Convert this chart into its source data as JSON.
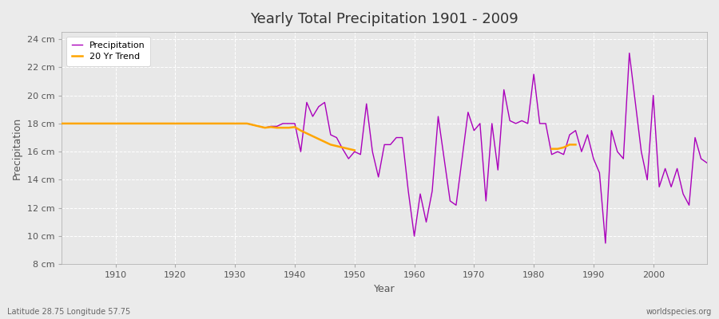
{
  "title": "Yearly Total Precipitation 1901 - 2009",
  "xlabel": "Year",
  "ylabel": "Precipitation",
  "subtitle_lat": "Latitude 28.75 Longitude 57.75",
  "watermark": "worldspecies.org",
  "ylim": [
    8,
    24.5
  ],
  "yticks": [
    8,
    10,
    12,
    14,
    16,
    18,
    20,
    22,
    24
  ],
  "ytick_labels": [
    "8 cm",
    "10 cm",
    "12 cm",
    "14 cm",
    "16 cm",
    "18 cm",
    "20 cm",
    "22 cm",
    "24 cm"
  ],
  "years": [
    1901,
    1902,
    1903,
    1904,
    1905,
    1906,
    1907,
    1908,
    1909,
    1910,
    1911,
    1912,
    1913,
    1914,
    1915,
    1916,
    1917,
    1918,
    1919,
    1920,
    1921,
    1922,
    1923,
    1924,
    1925,
    1926,
    1927,
    1928,
    1929,
    1930,
    1931,
    1932,
    1933,
    1934,
    1935,
    1936,
    1937,
    1938,
    1939,
    1940,
    1941,
    1942,
    1943,
    1944,
    1945,
    1946,
    1947,
    1948,
    1949,
    1950,
    1951,
    1952,
    1953,
    1954,
    1955,
    1956,
    1957,
    1958,
    1959,
    1960,
    1961,
    1962,
    1963,
    1964,
    1965,
    1966,
    1967,
    1968,
    1969,
    1970,
    1971,
    1972,
    1973,
    1974,
    1975,
    1976,
    1977,
    1978,
    1979,
    1980,
    1981,
    1982,
    1983,
    1984,
    1985,
    1986,
    1987,
    1988,
    1989,
    1990,
    1991,
    1992,
    1993,
    1994,
    1995,
    1996,
    1997,
    1998,
    1999,
    2000,
    2001,
    2002,
    2003,
    2004,
    2005,
    2006,
    2007,
    2008,
    2009
  ],
  "precip": [
    18.0,
    18.0,
    18.0,
    18.0,
    18.0,
    18.0,
    18.0,
    18.0,
    18.0,
    18.0,
    18.0,
    18.0,
    18.0,
    18.0,
    18.0,
    18.0,
    18.0,
    18.0,
    18.0,
    18.0,
    18.0,
    18.0,
    18.0,
    18.0,
    18.0,
    18.0,
    18.0,
    18.0,
    18.0,
    18.0,
    18.0,
    18.0,
    17.9,
    17.8,
    17.7,
    17.8,
    17.8,
    18.0,
    18.0,
    18.0,
    16.0,
    19.5,
    18.5,
    19.2,
    19.5,
    17.2,
    17.0,
    16.2,
    15.5,
    16.0,
    15.8,
    19.4,
    16.0,
    14.2,
    16.5,
    16.5,
    17.0,
    17.0,
    13.2,
    10.0,
    13.0,
    11.0,
    13.2,
    18.5,
    15.5,
    12.5,
    12.2,
    15.5,
    18.8,
    17.5,
    18.0,
    12.5,
    18.0,
    14.7,
    20.4,
    18.2,
    18.0,
    18.2,
    18.0,
    21.5,
    18.0,
    18.0,
    15.8,
    16.0,
    15.8,
    17.2,
    17.5,
    16.0,
    17.2,
    15.5,
    14.5,
    9.5,
    17.5,
    16.0,
    15.5,
    23.0,
    19.5,
    16.0,
    14.0,
    20.0,
    13.5,
    14.8,
    13.5,
    14.8,
    13.0,
    12.2,
    17.0,
    15.5,
    15.2
  ],
  "trend": [
    18.0,
    18.0,
    18.0,
    18.0,
    18.0,
    18.0,
    18.0,
    18.0,
    18.0,
    18.0,
    18.0,
    18.0,
    18.0,
    18.0,
    18.0,
    18.0,
    18.0,
    18.0,
    18.0,
    18.0,
    18.0,
    18.0,
    18.0,
    18.0,
    18.0,
    18.0,
    18.0,
    18.0,
    18.0,
    18.0,
    18.0,
    18.0,
    17.9,
    17.8,
    17.7,
    17.75,
    17.7,
    17.7,
    17.7,
    17.75,
    17.5,
    17.3,
    17.1,
    16.9,
    16.7,
    16.5,
    16.4,
    16.3,
    16.2,
    16.1,
    null,
    null,
    null,
    null,
    null,
    null,
    null,
    null,
    null,
    null,
    null,
    null,
    null,
    null,
    null,
    null,
    null,
    null,
    null,
    null,
    null,
    null,
    null,
    null,
    null,
    null,
    null,
    null,
    null,
    null,
    null,
    null,
    16.2,
    16.2,
    16.3,
    16.5,
    16.5,
    null,
    null,
    null,
    null,
    null,
    null,
    null,
    null,
    null,
    null,
    null,
    null,
    null,
    null,
    null,
    null,
    null,
    null,
    null,
    null,
    null,
    null
  ],
  "precip_color": "#AA00BB",
  "trend_color": "#FFA500",
  "fig_bg_color": "#EBEBEB",
  "plot_bg_color": "#E8E8E8",
  "grid_color": "#FFFFFF",
  "legend_bg": "#FFFFFF",
  "tick_label_color": "#555555",
  "spine_color": "#AAAAAA"
}
